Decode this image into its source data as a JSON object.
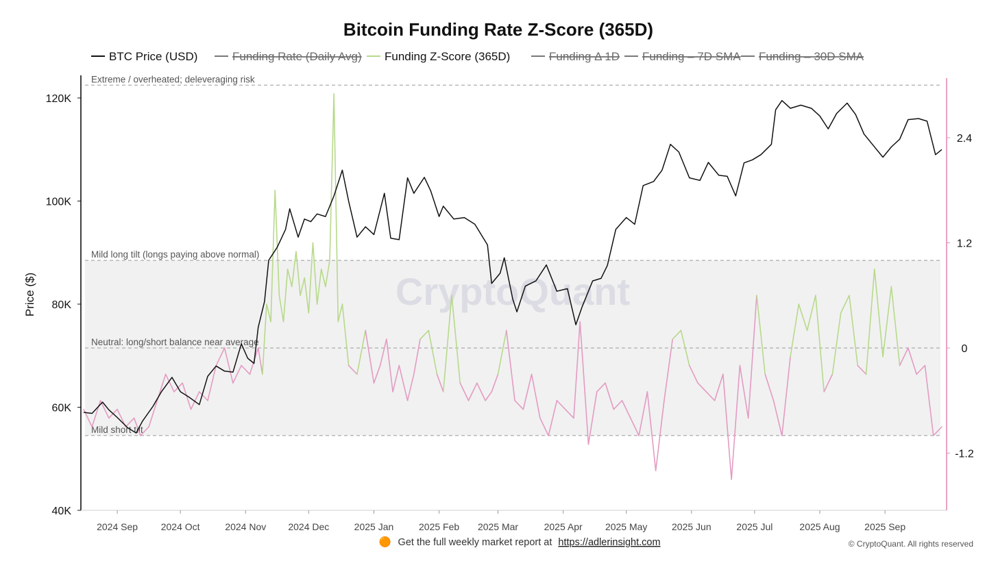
{
  "chart_data": {
    "type": "line",
    "title": "Bitcoin Funding Rate Z-Score (365D)",
    "ylabel_left": "Price ($)",
    "ylim_left": [
      40000,
      120000
    ],
    "left_ticks": [
      "40K",
      "60K",
      "80K",
      "100K",
      "120K"
    ],
    "left_tick_values": [
      40000,
      60000,
      80000,
      100000,
      120000
    ],
    "ylim_right": [
      -2.0,
      3.1
    ],
    "right_ticks": [
      "-1.2",
      "0",
      "1.2",
      "2.4"
    ],
    "right_tick_values": [
      -1.2,
      0,
      1.2,
      2.4
    ],
    "x_ticks": [
      "2024 Sep",
      "2024 Oct",
      "2024 Nov",
      "2024 Dec",
      "2025 Jan",
      "2025 Feb",
      "2025 Mar",
      "2025 Apr",
      "2025 May",
      "2025 Jun",
      "2025 Jul",
      "2025 Aug",
      "2025 Sep"
    ],
    "x_tick_dates": [
      "2024-09-01",
      "2024-10-01",
      "2024-11-01",
      "2024-12-01",
      "2025-01-01",
      "2025-02-01",
      "2025-03-01",
      "2025-04-01",
      "2025-05-01",
      "2025-06-01",
      "2025-07-01",
      "2025-08-01",
      "2025-09-01"
    ],
    "xlim": [
      "2024-08-16",
      "2025-09-28"
    ],
    "legend": [
      {
        "label": "BTC Price (USD)",
        "color": "#111111",
        "hidden": false
      },
      {
        "label": "Funding Rate (Daily Avg)",
        "color": "#777777",
        "hidden": true
      },
      {
        "label": "Funding Z-Score (365D)",
        "color": "#b7d98a",
        "hidden": false
      },
      {
        "label": "Funding Δ 1D",
        "color": "#777777",
        "hidden": true
      },
      {
        "label": "Funding – 7D SMA",
        "color": "#777777",
        "hidden": true
      },
      {
        "label": "Funding – 30D SMA",
        "color": "#777777",
        "hidden": true
      }
    ],
    "zones": [
      {
        "label": "Extreme / overheated; deleveraging risk",
        "value": 3.0
      },
      {
        "label": "Mild long tilt (longs paying above normal)",
        "value": 1.0
      },
      {
        "label": "Neutral: long/short balance near average",
        "value": 0.0
      },
      {
        "label": "Mild short tilt",
        "value": -1.0
      }
    ],
    "shaded_band": [
      -1.0,
      1.0
    ],
    "zscore_threshold_color": 0.1,
    "colors": {
      "price": "#111111",
      "z_positive": "#b7d98a",
      "z_negative": "#e39bc2",
      "right_axis": "#e48bb8",
      "band": "#f1f1f1",
      "grid": "#9a9a9a"
    },
    "series": [
      {
        "name": "BTC Price (USD)",
        "axis": "left",
        "dates": [
          "2024-08-16",
          "2024-08-20",
          "2024-08-25",
          "2024-08-28",
          "2024-09-01",
          "2024-09-06",
          "2024-09-10",
          "2024-09-13",
          "2024-09-18",
          "2024-09-22",
          "2024-09-27",
          "2024-10-01",
          "2024-10-05",
          "2024-10-10",
          "2024-10-14",
          "2024-10-18",
          "2024-10-22",
          "2024-10-26",
          "2024-10-30",
          "2024-11-02",
          "2024-11-05",
          "2024-11-07",
          "2024-11-10",
          "2024-11-12",
          "2024-11-16",
          "2024-11-20",
          "2024-11-22",
          "2024-11-26",
          "2024-11-29",
          "2024-12-02",
          "2024-12-05",
          "2024-12-09",
          "2024-12-13",
          "2024-12-17",
          "2024-12-20",
          "2024-12-24",
          "2024-12-28",
          "2025-01-01",
          "2025-01-06",
          "2025-01-09",
          "2025-01-13",
          "2025-01-17",
          "2025-01-20",
          "2025-01-25",
          "2025-01-28",
          "2025-02-01",
          "2025-02-03",
          "2025-02-08",
          "2025-02-13",
          "2025-02-18",
          "2025-02-24",
          "2025-02-26",
          "2025-03-02",
          "2025-03-04",
          "2025-03-08",
          "2025-03-10",
          "2025-03-14",
          "2025-03-19",
          "2025-03-24",
          "2025-03-29",
          "2025-04-03",
          "2025-04-07",
          "2025-04-10",
          "2025-04-15",
          "2025-04-19",
          "2025-04-22",
          "2025-04-26",
          "2025-05-01",
          "2025-05-05",
          "2025-05-09",
          "2025-05-14",
          "2025-05-18",
          "2025-05-22",
          "2025-05-26",
          "2025-05-31",
          "2025-06-05",
          "2025-06-09",
          "2025-06-14",
          "2025-06-18",
          "2025-06-22",
          "2025-06-26",
          "2025-06-30",
          "2025-07-04",
          "2025-07-09",
          "2025-07-11",
          "2025-07-14",
          "2025-07-18",
          "2025-07-23",
          "2025-07-28",
          "2025-08-01",
          "2025-08-05",
          "2025-08-09",
          "2025-08-14",
          "2025-08-18",
          "2025-08-22",
          "2025-08-26",
          "2025-08-31",
          "2025-09-04",
          "2025-09-08",
          "2025-09-12",
          "2025-09-17",
          "2025-09-21",
          "2025-09-25",
          "2025-09-28"
        ],
        "values": [
          59000,
          58800,
          61000,
          59500,
          58000,
          56000,
          55000,
          57300,
          60200,
          63000,
          65800,
          63000,
          62000,
          60500,
          66000,
          68000,
          67000,
          66800,
          72300,
          69500,
          68500,
          75500,
          80500,
          88500,
          91000,
          94500,
          98500,
          93000,
          96500,
          96000,
          97500,
          97000,
          101000,
          106000,
          100000,
          93000,
          95000,
          93500,
          101500,
          92800,
          92500,
          104500,
          101500,
          104600,
          102000,
          97000,
          99000,
          96500,
          96800,
          95500,
          91500,
          84000,
          86000,
          89000,
          81000,
          78500,
          83500,
          84500,
          87600,
          82500,
          83000,
          76000,
          79500,
          84500,
          85000,
          87500,
          94500,
          96800,
          95500,
          103000,
          103800,
          106000,
          111000,
          109500,
          104500,
          104000,
          107500,
          105000,
          104800,
          101000,
          107400,
          108000,
          109000,
          111000,
          117700,
          119500,
          118000,
          118600,
          118000,
          116500,
          114000,
          117000,
          119000,
          116800,
          113000,
          111000,
          108500,
          110500,
          112000,
          115800,
          116000,
          115500,
          109000,
          110000
        ]
      },
      {
        "name": "Funding Z-Score (365D)",
        "axis": "right",
        "dates": [
          "2024-08-16",
          "2024-08-20",
          "2024-08-24",
          "2024-08-28",
          "2024-09-01",
          "2024-09-05",
          "2024-09-09",
          "2024-09-12",
          "2024-09-16",
          "2024-09-20",
          "2024-09-24",
          "2024-09-28",
          "2024-10-02",
          "2024-10-06",
          "2024-10-10",
          "2024-10-14",
          "2024-10-18",
          "2024-10-22",
          "2024-10-26",
          "2024-10-30",
          "2024-11-03",
          "2024-11-07",
          "2024-11-09",
          "2024-11-11",
          "2024-11-13",
          "2024-11-15",
          "2024-11-17",
          "2024-11-19",
          "2024-11-21",
          "2024-11-23",
          "2024-11-25",
          "2024-11-27",
          "2024-11-29",
          "2024-12-01",
          "2024-12-03",
          "2024-12-05",
          "2024-12-07",
          "2024-12-09",
          "2024-12-11",
          "2024-12-13",
          "2024-12-15",
          "2024-12-17",
          "2024-12-20",
          "2024-12-24",
          "2024-12-28",
          "2025-01-01",
          "2025-01-04",
          "2025-01-07",
          "2025-01-10",
          "2025-01-13",
          "2025-01-17",
          "2025-01-20",
          "2025-01-23",
          "2025-01-27",
          "2025-01-31",
          "2025-02-03",
          "2025-02-07",
          "2025-02-11",
          "2025-02-15",
          "2025-02-19",
          "2025-02-23",
          "2025-02-26",
          "2025-03-01",
          "2025-03-05",
          "2025-03-09",
          "2025-03-13",
          "2025-03-17",
          "2025-03-21",
          "2025-03-25",
          "2025-03-29",
          "2025-04-02",
          "2025-04-06",
          "2025-04-09",
          "2025-04-13",
          "2025-04-17",
          "2025-04-21",
          "2025-04-25",
          "2025-04-29",
          "2025-05-03",
          "2025-05-07",
          "2025-05-11",
          "2025-05-15",
          "2025-05-19",
          "2025-05-23",
          "2025-05-27",
          "2025-05-31",
          "2025-06-04",
          "2025-06-08",
          "2025-06-12",
          "2025-06-16",
          "2025-06-20",
          "2025-06-24",
          "2025-06-28",
          "2025-07-02",
          "2025-07-06",
          "2025-07-10",
          "2025-07-14",
          "2025-07-18",
          "2025-07-22",
          "2025-07-26",
          "2025-07-30",
          "2025-08-03",
          "2025-08-07",
          "2025-08-11",
          "2025-08-15",
          "2025-08-19",
          "2025-08-23",
          "2025-08-27",
          "2025-08-31",
          "2025-09-04",
          "2025-09-08",
          "2025-09-12",
          "2025-09-16",
          "2025-09-20",
          "2025-09-24",
          "2025-09-28"
        ],
        "values": [
          -0.7,
          -0.9,
          -0.6,
          -0.8,
          -0.7,
          -0.9,
          -0.8,
          -1.0,
          -0.9,
          -0.6,
          -0.3,
          -0.5,
          -0.4,
          -0.7,
          -0.5,
          -0.6,
          -0.2,
          0.0,
          -0.4,
          -0.2,
          -0.3,
          0.0,
          -0.3,
          0.5,
          0.3,
          1.8,
          0.6,
          0.3,
          0.9,
          0.7,
          1.1,
          0.6,
          0.8,
          0.4,
          1.2,
          0.5,
          0.9,
          0.7,
          1.0,
          2.9,
          0.3,
          0.5,
          -0.2,
          -0.3,
          0.2,
          -0.4,
          -0.2,
          0.1,
          -0.5,
          -0.2,
          -0.6,
          -0.3,
          0.1,
          0.2,
          -0.3,
          -0.5,
          0.6,
          -0.4,
          -0.6,
          -0.4,
          -0.6,
          -0.5,
          -0.3,
          0.2,
          -0.6,
          -0.7,
          -0.3,
          -0.8,
          -1.0,
          -0.6,
          -0.7,
          -0.8,
          0.3,
          -1.1,
          -0.5,
          -0.4,
          -0.7,
          -0.6,
          -0.8,
          -1.0,
          -0.5,
          -1.4,
          -0.6,
          0.1,
          0.2,
          -0.2,
          -0.4,
          -0.5,
          -0.6,
          -0.3,
          -1.5,
          -0.2,
          -0.8,
          0.6,
          -0.3,
          -0.6,
          -1.0,
          -0.1,
          0.5,
          0.2,
          0.6,
          -0.5,
          -0.3,
          0.4,
          0.6,
          -0.2,
          -0.3,
          0.9,
          -0.1,
          0.7,
          -0.2,
          0.0,
          -0.3,
          -0.2,
          -1.0,
          -0.9
        ]
      }
    ]
  },
  "watermark": "CryptoQuant",
  "footer": {
    "emoji": "🟠",
    "prefix": "Get the full weekly market report at",
    "link": "https://adlerinsight.com"
  },
  "copyright": "© CryptoQuant. All rights reserved"
}
